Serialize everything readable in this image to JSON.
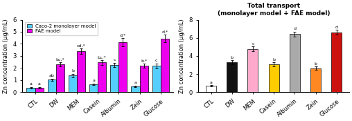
{
  "chart_data": [
    {
      "type": "bar",
      "ylabel": "Zn concentration (μg/mL)",
      "categories": [
        "CTL",
        "DW",
        "MEM",
        "Casein",
        "Albumin",
        "Zein",
        "Glucose"
      ],
      "series": [
        {
          "name": "Caco-2 monolayer model",
          "color": "#55cfff",
          "values": [
            0.38,
            1.02,
            1.38,
            0.65,
            2.25,
            0.48,
            2.18
          ],
          "errors": [
            0.05,
            0.1,
            0.15,
            0.08,
            0.18,
            0.07,
            0.2
          ],
          "annotations": [
            "a",
            "ab",
            "b",
            "a",
            "c",
            "a",
            "c"
          ]
        },
        {
          "name": "FAE model",
          "color": "#ee00ee",
          "values": [
            0.38,
            2.3,
            3.38,
            2.45,
            4.12,
            2.18,
            4.45
          ],
          "errors": [
            0.06,
            0.18,
            0.22,
            0.2,
            0.35,
            0.18,
            0.3
          ],
          "annotations": [
            "a",
            "bc,*",
            "cd,*",
            "bc,*",
            "d,*",
            "b,*",
            "d,*"
          ]
        }
      ],
      "ylim": [
        0,
        6
      ],
      "yticks": [
        0,
        1,
        2,
        3,
        4,
        5,
        6
      ],
      "legend": "upper left",
      "grid": false
    },
    {
      "type": "bar",
      "title": "Total transport\n(monolayer model + FAE model)",
      "ylabel": "Zn concentration (μg/mL)",
      "categories": [
        "CTL",
        "DW",
        "MEM",
        "Casein",
        "Albumin",
        "Zein",
        "Glucose"
      ],
      "values": [
        0.72,
        3.3,
        4.78,
        3.05,
        6.4,
        2.65,
        6.62
      ],
      "errors": [
        0.07,
        0.22,
        0.26,
        0.22,
        0.28,
        0.2,
        0.25
      ],
      "annotations": [
        "a",
        "b",
        "c",
        "b",
        "d",
        "b",
        "d"
      ],
      "colors": [
        "#ffffff",
        "#111111",
        "#ffaacc",
        "#ffcc00",
        "#aaaaaa",
        "#ff8822",
        "#cc1111"
      ],
      "ylim": [
        0,
        8
      ],
      "yticks": [
        0,
        2,
        4,
        6,
        8
      ],
      "grid": false
    }
  ]
}
